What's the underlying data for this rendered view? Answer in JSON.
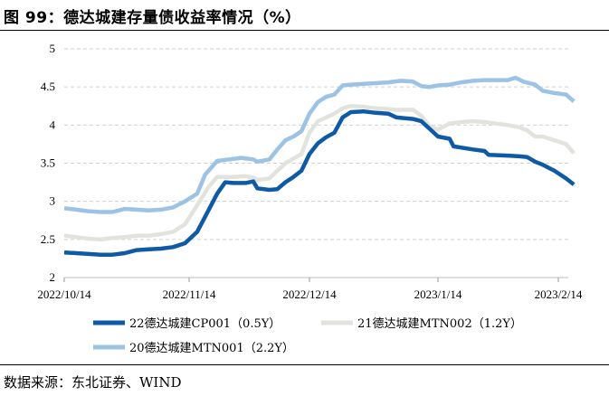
{
  "figure": {
    "title": "图 99：德达城建存量债收益率情况（%）",
    "source": "数据来源：东北证券、WIND"
  },
  "chart_data": {
    "type": "line",
    "title": "图 99：德达城建存量债收益率情况（%）",
    "xlabel": "",
    "ylabel": "",
    "ylim": [
      2,
      5
    ],
    "yticks": [
      2,
      2.5,
      3,
      3.5,
      4,
      4.5,
      5
    ],
    "ytick_labels": [
      "2",
      "2.5",
      "3",
      "3.5",
      "4",
      "4.5",
      "5"
    ],
    "xlim": [
      "2022-10-14",
      "2023-02-14"
    ],
    "xticks": [
      "2022-10-14",
      "2022-11-14",
      "2022-12-14",
      "2023-01-14",
      "2023-02-14"
    ],
    "xtick_labels": [
      "2022/10/14",
      "2022/11/14",
      "2022/12/14",
      "2023/1/14",
      "2023/2/14"
    ],
    "grid": "horizontal dashed",
    "legend_position": "bottom",
    "colors": {
      "primary": "#0e5aa7",
      "secondary": "#e3e3de",
      "tertiary": "#9cc3e5"
    },
    "series": [
      {
        "name": "22德达城建CP001（0.5Y）",
        "color": "#0e5aa7",
        "points": [
          [
            "2022-10-14",
            2.33
          ],
          [
            "2022-10-17",
            2.32
          ],
          [
            "2022-10-20",
            2.31
          ],
          [
            "2022-10-23",
            2.3
          ],
          [
            "2022-10-26",
            2.3
          ],
          [
            "2022-10-29",
            2.32
          ],
          [
            "2022-11-01",
            2.36
          ],
          [
            "2022-11-04",
            2.37
          ],
          [
            "2022-11-07",
            2.38
          ],
          [
            "2022-11-10",
            2.4
          ],
          [
            "2022-11-13",
            2.45
          ],
          [
            "2022-11-16",
            2.6
          ],
          [
            "2022-11-19",
            2.9
          ],
          [
            "2022-11-21",
            3.1
          ],
          [
            "2022-11-23",
            3.25
          ],
          [
            "2022-11-25",
            3.24
          ],
          [
            "2022-11-28",
            3.24
          ],
          [
            "2022-11-30",
            3.26
          ],
          [
            "2022-12-01",
            3.17
          ],
          [
            "2022-12-04",
            3.15
          ],
          [
            "2022-12-06",
            3.16
          ],
          [
            "2022-12-08",
            3.25
          ],
          [
            "2022-12-10",
            3.32
          ],
          [
            "2022-12-12",
            3.4
          ],
          [
            "2022-12-14",
            3.62
          ],
          [
            "2022-12-16",
            3.76
          ],
          [
            "2022-12-18",
            3.84
          ],
          [
            "2022-12-20",
            3.9
          ],
          [
            "2022-12-22",
            4.1
          ],
          [
            "2022-12-24",
            4.17
          ],
          [
            "2022-12-27",
            4.18
          ],
          [
            "2022-12-30",
            4.16
          ],
          [
            "2023-01-02",
            4.15
          ],
          [
            "2023-01-04",
            4.1
          ],
          [
            "2023-01-08",
            4.08
          ],
          [
            "2023-01-10",
            4.05
          ],
          [
            "2023-01-12",
            3.95
          ],
          [
            "2023-01-14",
            3.85
          ],
          [
            "2023-01-17",
            3.82
          ],
          [
            "2023-01-18",
            3.72
          ],
          [
            "2023-01-23",
            3.68
          ],
          [
            "2023-01-26",
            3.66
          ],
          [
            "2023-01-27",
            3.61
          ],
          [
            "2023-02-01",
            3.6
          ],
          [
            "2023-02-04",
            3.59
          ],
          [
            "2023-02-06",
            3.58
          ],
          [
            "2023-02-08",
            3.52
          ],
          [
            "2023-02-10",
            3.48
          ],
          [
            "2023-02-13",
            3.4
          ],
          [
            "2023-02-16",
            3.3
          ],
          [
            "2023-02-18",
            3.22
          ]
        ]
      },
      {
        "name": "21德达城建MTN002（1.2Y）",
        "color": "#e3e3de",
        "points": [
          [
            "2022-10-14",
            2.55
          ],
          [
            "2022-10-17",
            2.53
          ],
          [
            "2022-10-20",
            2.51
          ],
          [
            "2022-10-23",
            2.5
          ],
          [
            "2022-10-26",
            2.52
          ],
          [
            "2022-10-29",
            2.53
          ],
          [
            "2022-11-01",
            2.55
          ],
          [
            "2022-11-04",
            2.55
          ],
          [
            "2022-11-07",
            2.57
          ],
          [
            "2022-11-10",
            2.6
          ],
          [
            "2022-11-13",
            2.7
          ],
          [
            "2022-11-16",
            2.95
          ],
          [
            "2022-11-19",
            3.2
          ],
          [
            "2022-11-21",
            3.32
          ],
          [
            "2022-11-23",
            3.32
          ],
          [
            "2022-11-25",
            3.32
          ],
          [
            "2022-11-28",
            3.33
          ],
          [
            "2022-11-30",
            3.31
          ],
          [
            "2022-12-01",
            3.28
          ],
          [
            "2022-12-04",
            3.3
          ],
          [
            "2022-12-06",
            3.4
          ],
          [
            "2022-12-08",
            3.5
          ],
          [
            "2022-12-10",
            3.56
          ],
          [
            "2022-12-12",
            3.62
          ],
          [
            "2022-12-14",
            3.9
          ],
          [
            "2022-12-16",
            4.05
          ],
          [
            "2022-12-18",
            4.1
          ],
          [
            "2022-12-20",
            4.15
          ],
          [
            "2022-12-22",
            4.22
          ],
          [
            "2022-12-24",
            4.25
          ],
          [
            "2022-12-27",
            4.24
          ],
          [
            "2022-12-30",
            4.22
          ],
          [
            "2023-01-02",
            4.21
          ],
          [
            "2023-01-04",
            4.2
          ],
          [
            "2023-01-08",
            4.2
          ],
          [
            "2023-01-10",
            4.12
          ],
          [
            "2023-01-12",
            3.98
          ],
          [
            "2023-01-14",
            3.94
          ],
          [
            "2023-01-17",
            4.02
          ],
          [
            "2023-01-20",
            4.04
          ],
          [
            "2023-01-23",
            4.05
          ],
          [
            "2023-01-26",
            4.04
          ],
          [
            "2023-02-01",
            4.0
          ],
          [
            "2023-02-04",
            3.97
          ],
          [
            "2023-02-06",
            3.93
          ],
          [
            "2023-02-08",
            3.85
          ],
          [
            "2023-02-10",
            3.85
          ],
          [
            "2023-02-13",
            3.8
          ],
          [
            "2023-02-16",
            3.75
          ],
          [
            "2023-02-18",
            3.63
          ]
        ]
      },
      {
        "name": "20德达城建MTN001（2.2Y）",
        "color": "#9cc3e5",
        "points": [
          [
            "2022-10-14",
            2.91
          ],
          [
            "2022-10-17",
            2.89
          ],
          [
            "2022-10-20",
            2.87
          ],
          [
            "2022-10-23",
            2.86
          ],
          [
            "2022-10-26",
            2.86
          ],
          [
            "2022-10-29",
            2.9
          ],
          [
            "2022-11-01",
            2.89
          ],
          [
            "2022-11-04",
            2.88
          ],
          [
            "2022-11-07",
            2.89
          ],
          [
            "2022-11-10",
            2.92
          ],
          [
            "2022-11-13",
            3.0
          ],
          [
            "2022-11-16",
            3.1
          ],
          [
            "2022-11-18",
            3.35
          ],
          [
            "2022-11-21",
            3.53
          ],
          [
            "2022-11-24",
            3.55
          ],
          [
            "2022-11-27",
            3.57
          ],
          [
            "2022-11-30",
            3.55
          ],
          [
            "2022-12-01",
            3.52
          ],
          [
            "2022-12-04",
            3.55
          ],
          [
            "2022-12-06",
            3.68
          ],
          [
            "2022-12-08",
            3.8
          ],
          [
            "2022-12-10",
            3.85
          ],
          [
            "2022-12-12",
            3.92
          ],
          [
            "2022-12-14",
            4.15
          ],
          [
            "2022-12-16",
            4.3
          ],
          [
            "2022-12-18",
            4.37
          ],
          [
            "2022-12-20",
            4.4
          ],
          [
            "2022-12-22",
            4.52
          ],
          [
            "2022-12-24",
            4.53
          ],
          [
            "2022-12-27",
            4.54
          ],
          [
            "2022-12-30",
            4.55
          ],
          [
            "2023-01-02",
            4.56
          ],
          [
            "2023-01-05",
            4.58
          ],
          [
            "2023-01-08",
            4.57
          ],
          [
            "2023-01-10",
            4.51
          ],
          [
            "2023-01-12",
            4.5
          ],
          [
            "2023-01-14",
            4.52
          ],
          [
            "2023-01-17",
            4.53
          ],
          [
            "2023-01-20",
            4.56
          ],
          [
            "2023-01-23",
            4.58
          ],
          [
            "2023-01-26",
            4.59
          ],
          [
            "2023-02-01",
            4.59
          ],
          [
            "2023-02-03",
            4.62
          ],
          [
            "2023-02-05",
            4.57
          ],
          [
            "2023-02-08",
            4.53
          ],
          [
            "2023-02-10",
            4.45
          ],
          [
            "2023-02-13",
            4.42
          ],
          [
            "2023-02-16",
            4.4
          ],
          [
            "2023-02-18",
            4.31
          ]
        ]
      }
    ]
  }
}
